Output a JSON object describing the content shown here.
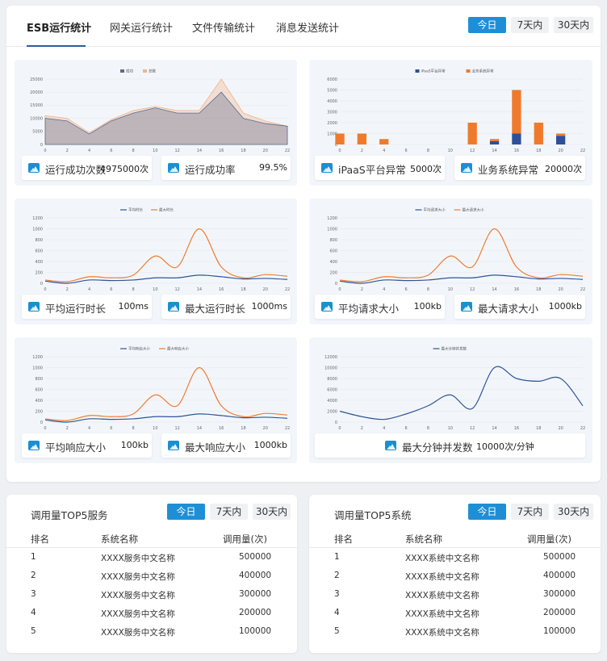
{
  "top_tabs": [
    "ESB运行统计",
    "网关运行统计",
    "文件传输统计",
    "消息发送统计"
  ],
  "range_buttons": [
    "今日",
    "7天内",
    "30天内"
  ],
  "panels": [
    {
      "stats": [
        {
          "label": "运行成功次数",
          "value": "4975000次"
        },
        {
          "label": "运行成功率",
          "value": "99.5%"
        }
      ]
    },
    {
      "stats": [
        {
          "label": "iPaaS平台异常",
          "value": "5000次"
        },
        {
          "label": "业务系统异常",
          "value": "20000次"
        }
      ]
    },
    {
      "stats": [
        {
          "label": "平均运行时长",
          "value": "100ms"
        },
        {
          "label": "最大运行时长",
          "value": "1000ms"
        }
      ]
    },
    {
      "stats": [
        {
          "label": "平均请求大小",
          "value": "100kb"
        },
        {
          "label": "最大请求大小",
          "value": "1000kb"
        }
      ]
    },
    {
      "stats": [
        {
          "label": "平均响应大小",
          "value": "100kb"
        },
        {
          "label": "最大响应大小",
          "value": "1000kb"
        }
      ]
    },
    {
      "stats": [
        {
          "label": "最大分钟并发数",
          "value": "10000次/分钟"
        }
      ]
    }
  ],
  "chart_data": [
    {
      "type": "area",
      "x": [
        0,
        2,
        4,
        6,
        8,
        10,
        12,
        14,
        16,
        18,
        20,
        22
      ],
      "ylim": [
        0,
        25000
      ],
      "yticks": [
        0,
        5000,
        10000,
        15000,
        20000,
        25000
      ],
      "series": [
        {
          "name": "成功",
          "color": "#5b6b8c",
          "values": [
            10000,
            9000,
            4000,
            9000,
            12000,
            14000,
            12000,
            12000,
            20000,
            10000,
            8000,
            7000
          ]
        },
        {
          "name": "总数",
          "color": "#f3b28a",
          "values": [
            11000,
            10000,
            4500,
            9500,
            13000,
            14500,
            13000,
            13000,
            25000,
            12000,
            9000,
            7000
          ]
        }
      ]
    },
    {
      "type": "bar",
      "x": [
        0,
        2,
        4,
        6,
        8,
        10,
        12,
        14,
        16,
        18,
        20,
        22
      ],
      "ylim": [
        0,
        6000
      ],
      "yticks": [
        0,
        1000,
        2000,
        3000,
        4000,
        5000,
        6000
      ],
      "stacked": true,
      "series": [
        {
          "name": "iPaaS平台异常",
          "color": "#2f4f9b",
          "values": [
            0,
            0,
            0,
            0,
            0,
            0,
            0,
            300,
            1000,
            0,
            800,
            0
          ]
        },
        {
          "name": "业务系统异常",
          "color": "#f07a2c",
          "values": [
            1000,
            1000,
            500,
            0,
            0,
            0,
            2000,
            200,
            4000,
            2000,
            200,
            0
          ]
        }
      ]
    },
    {
      "type": "line",
      "x": [
        0,
        2,
        4,
        6,
        8,
        10,
        12,
        14,
        16,
        18,
        20,
        22
      ],
      "ylim": [
        0,
        1200
      ],
      "yticks": [
        0,
        200,
        400,
        600,
        800,
        1000,
        1200
      ],
      "series": [
        {
          "name": "平均时长",
          "color": "#2f5597",
          "values": [
            40,
            0,
            60,
            50,
            60,
            100,
            100,
            150,
            120,
            80,
            90,
            70
          ]
        },
        {
          "name": "最大时长",
          "color": "#ee7d31",
          "values": [
            60,
            30,
            120,
            100,
            150,
            500,
            300,
            1000,
            300,
            100,
            160,
            130
          ]
        }
      ]
    },
    {
      "type": "line",
      "x": [
        0,
        2,
        4,
        6,
        8,
        10,
        12,
        14,
        16,
        18,
        20,
        22
      ],
      "ylim": [
        0,
        1200
      ],
      "yticks": [
        0,
        200,
        400,
        600,
        800,
        1000,
        1200
      ],
      "series": [
        {
          "name": "平均请求大小",
          "color": "#2f5597",
          "values": [
            40,
            0,
            60,
            50,
            60,
            100,
            100,
            150,
            120,
            80,
            90,
            70
          ]
        },
        {
          "name": "最大请求大小",
          "color": "#ee7d31",
          "values": [
            60,
            30,
            120,
            100,
            150,
            500,
            300,
            1000,
            300,
            100,
            160,
            130
          ]
        }
      ]
    },
    {
      "type": "line",
      "x": [
        0,
        2,
        4,
        6,
        8,
        10,
        12,
        14,
        16,
        18,
        20,
        22
      ],
      "ylim": [
        0,
        1200
      ],
      "yticks": [
        0,
        200,
        400,
        600,
        800,
        1000,
        1200
      ],
      "series": [
        {
          "name": "平均响应大小",
          "color": "#2f5597",
          "values": [
            40,
            0,
            60,
            50,
            60,
            100,
            100,
            150,
            120,
            80,
            90,
            70
          ]
        },
        {
          "name": "最大响应大小",
          "color": "#ee7d31",
          "values": [
            60,
            30,
            120,
            100,
            150,
            500,
            300,
            1000,
            300,
            100,
            160,
            130
          ]
        }
      ]
    },
    {
      "type": "line",
      "x": [
        0,
        2,
        4,
        6,
        8,
        10,
        12,
        14,
        16,
        18,
        20,
        22
      ],
      "ylim": [
        0,
        12000
      ],
      "yticks": [
        0,
        2000,
        4000,
        6000,
        8000,
        10000,
        12000
      ],
      "series": [
        {
          "name": "最大分钟并发数",
          "color": "#2f5597",
          "values": [
            2000,
            1000,
            500,
            1500,
            3000,
            5000,
            2500,
            10000,
            8000,
            7500,
            8000,
            3000
          ]
        }
      ]
    }
  ],
  "services_table": {
    "title": "调用量TOP5服务",
    "columns": [
      "排名",
      "系统名称",
      "调用量(次)"
    ],
    "rows": [
      [
        "1",
        "XXXX服务中文名称",
        "500000"
      ],
      [
        "2",
        "XXXX服务中文名称",
        "400000"
      ],
      [
        "3",
        "XXXX服务中文名称",
        "300000"
      ],
      [
        "4",
        "XXXX服务中文名称",
        "200000"
      ],
      [
        "5",
        "XXXX服务中文名称",
        "100000"
      ]
    ]
  },
  "systems_table": {
    "title": "调用量TOP5系统",
    "columns": [
      "排名",
      "系统名称",
      "调用量(次)"
    ],
    "rows": [
      [
        "1",
        "XXXX系统中文名称",
        "500000"
      ],
      [
        "2",
        "XXXX系统中文名称",
        "400000"
      ],
      [
        "3",
        "XXXX系统中文名称",
        "300000"
      ],
      [
        "4",
        "XXXX系统中文名称",
        "200000"
      ],
      [
        "5",
        "XXXX系统中文名称",
        "100000"
      ]
    ]
  },
  "colors": {
    "accent": "#1e8fd6",
    "underline": "#2f5aa0",
    "panel_bg": "#f2f6fb"
  },
  "icons": {
    "stat_icon": "image-icon"
  }
}
